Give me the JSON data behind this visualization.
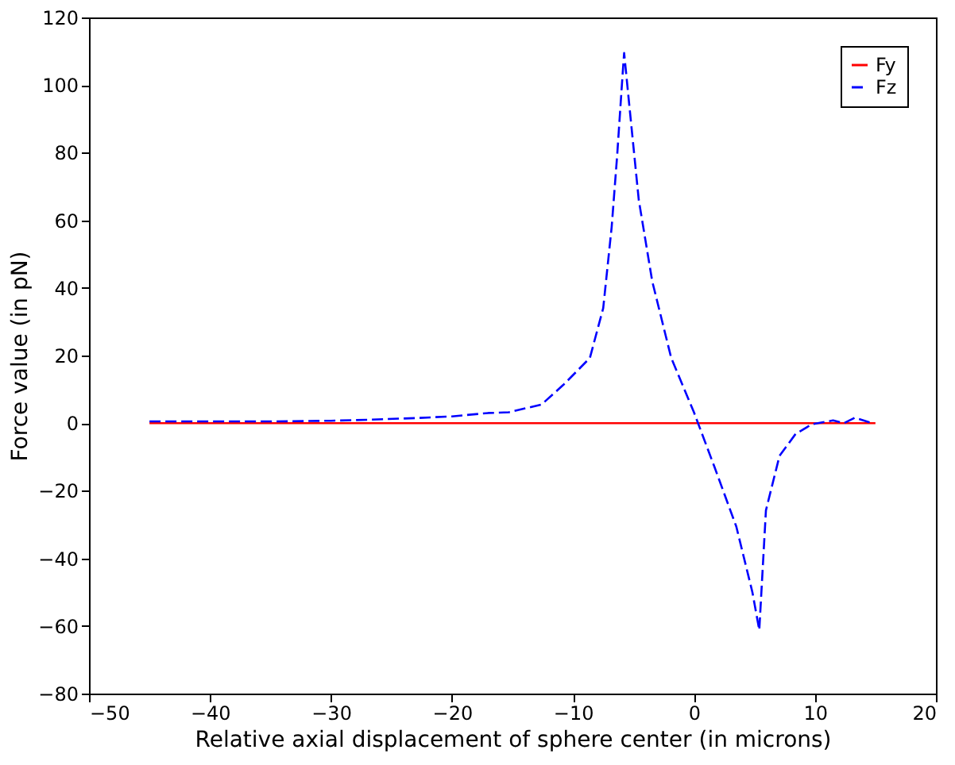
{
  "chart_data": {
    "type": "line",
    "xlabel": "Relative axial displacement of sphere center (in microns)",
    "ylabel": "Force value (in pN)",
    "xlim": [
      -50,
      20
    ],
    "xticks": [
      -50,
      -40,
      -30,
      -20,
      -10,
      0,
      10,
      20
    ],
    "ylim": [
      -80,
      120
    ],
    "yticks": [
      -80,
      -60,
      -40,
      -20,
      0,
      20,
      40,
      60,
      80,
      100,
      120
    ],
    "grid": false,
    "legend": "top right",
    "series": [
      {
        "name": "Fy",
        "color": "#ff0000",
        "line_style": "solid",
        "x": [
          -45,
          15
        ],
        "values": [
          0,
          0
        ]
      },
      {
        "name": "Fz",
        "color": "#0000ff",
        "line_style": "dashed",
        "x": [
          -45,
          -35,
          -30,
          -27,
          -23,
          -20,
          -17,
          -15.3,
          -12.6,
          -10.8,
          -9.5,
          -8.6,
          -7.5,
          -6.8,
          -6.35,
          -5.9,
          -5.77,
          -5.37,
          -4.56,
          -3.45,
          -1.88,
          0,
          1.7,
          3.5,
          4.83,
          5.4,
          5.95,
          7.07,
          8.4,
          9.76,
          11.5,
          12.4,
          13.3,
          14.7
        ],
        "values": [
          0.5,
          0.5,
          0.7,
          1,
          1.5,
          2,
          3,
          3.2,
          5.5,
          11.3,
          16,
          19.3,
          34,
          58,
          79,
          103,
          109.5,
          95,
          66,
          42,
          19.3,
          3.2,
          -13,
          -30.6,
          -50,
          -61.2,
          -25.8,
          -9.7,
          -3.2,
          -0.3,
          0.8,
          0,
          1.6,
          0
        ]
      }
    ]
  }
}
